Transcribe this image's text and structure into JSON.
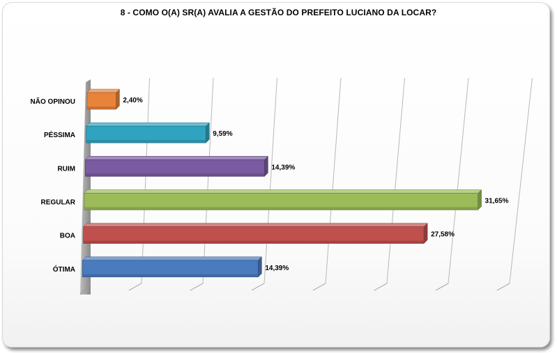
{
  "chart_data": {
    "type": "bar",
    "orientation": "horizontal",
    "style": "3d",
    "title": "8 - COMO O(A) SR(A) AVALIA A GESTÃO DO PREFEITO LUCIANO DA LOCAR?",
    "categories": [
      "NÃO OPINOU",
      "PÉSSIMA",
      "RUIM",
      "REGULAR",
      "BOA",
      "ÓTIMA"
    ],
    "values": [
      2.4,
      9.59,
      14.39,
      31.65,
      27.58,
      14.39
    ],
    "value_labels": [
      "2,40%",
      "9,59%",
      "14,39%",
      "31,65%",
      "27,58%",
      "14,39%"
    ],
    "colors": [
      "#e8843a",
      "#2fa3bf",
      "#7a5aa0",
      "#9bbb59",
      "#c0504d",
      "#4a7bbf"
    ],
    "xlim": [
      0,
      35
    ],
    "grid": true,
    "legend": "none"
  }
}
